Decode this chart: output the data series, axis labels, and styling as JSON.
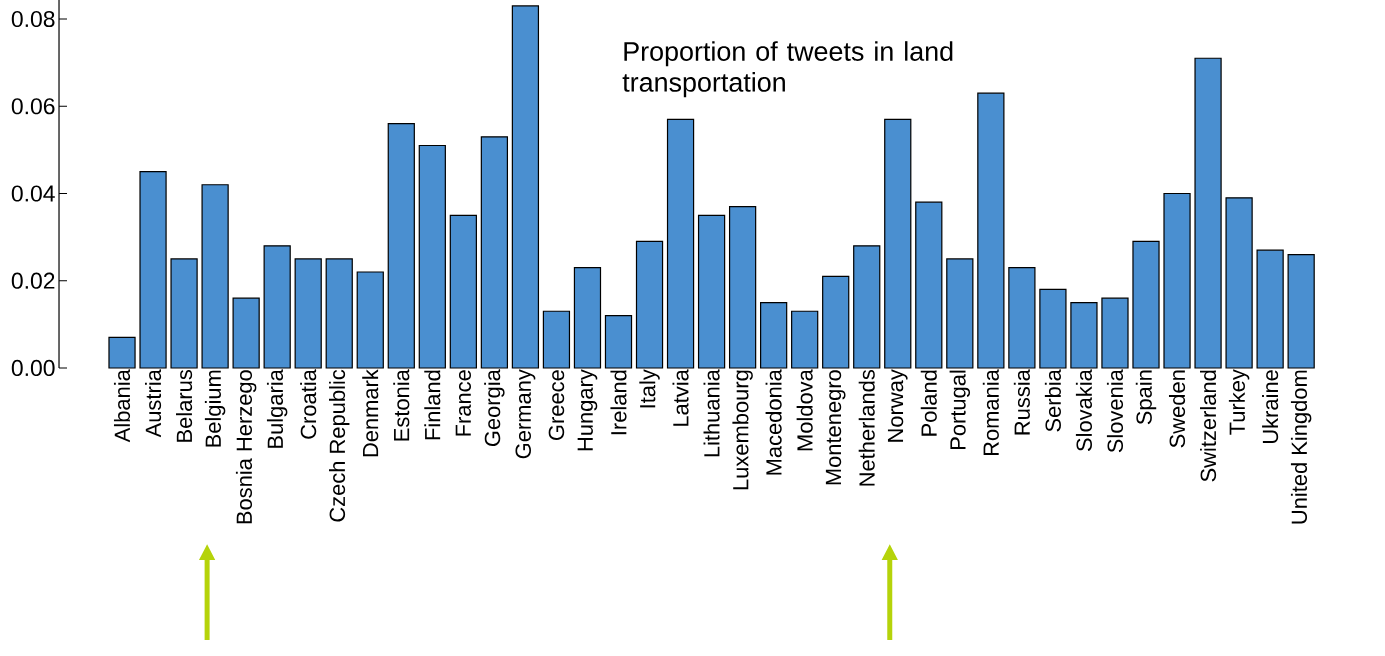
{
  "chart_data": {
    "type": "bar",
    "title": "Proportion of tweets in land transportation",
    "categories": [
      "Albania",
      "Austria",
      "Belarus",
      "Belgium",
      "Bosnia Herzego",
      "Bulgaria",
      "Croatia",
      "Czech Republic",
      "Denmark",
      "Estonia",
      "Finland",
      "France",
      "Georgia",
      "Germany",
      "Greece",
      "Hungary",
      "Ireland",
      "Italy",
      "Latvia",
      "Lithuania",
      "Luxembourg",
      "Macedonia",
      "Moldova",
      "Montenegro",
      "Netherlands",
      "Norway",
      "Poland",
      "Portugal",
      "Romania",
      "Russia",
      "Serbia",
      "Slovakia",
      "Slovenia",
      "Spain",
      "Sweden",
      "Switzerland",
      "Turkey",
      "Ukraine",
      "United Kingdom"
    ],
    "values": [
      0.007,
      0.045,
      0.025,
      0.042,
      0.016,
      0.028,
      0.025,
      0.025,
      0.022,
      0.056,
      0.051,
      0.035,
      0.053,
      0.083,
      0.013,
      0.023,
      0.012,
      0.029,
      0.057,
      0.035,
      0.037,
      0.015,
      0.013,
      0.021,
      0.028,
      0.057,
      0.038,
      0.025,
      0.063,
      0.023,
      0.018,
      0.015,
      0.016,
      0.029,
      0.04,
      0.071,
      0.039,
      0.027,
      0.026
    ],
    "color": "#4a8fd0",
    "ylim": [
      0,
      0.085
    ],
    "yticks": [
      {
        "value": 0,
        "label": "0.00"
      },
      0.02,
      0.04,
      0.06,
      0.08
    ]
  }
}
